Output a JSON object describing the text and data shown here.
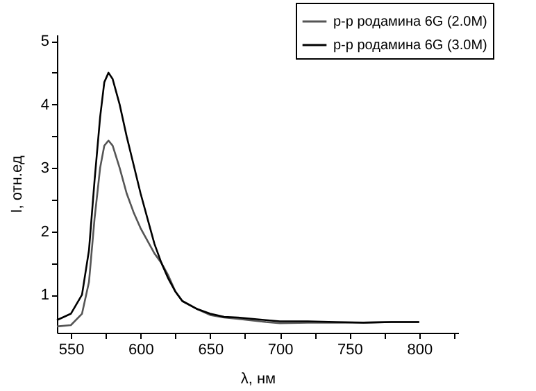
{
  "chart_data": {
    "type": "line",
    "xlabel": "λ, нм",
    "ylabel": "I, отн.ед",
    "xlim": [
      540,
      828
    ],
    "ylim": [
      0.4,
      5.1
    ],
    "xticks": [
      550,
      {
        "value": 575,
        "label": null
      },
      600,
      {
        "value": 625,
        "label": null
      },
      650,
      {
        "value": 675,
        "label": null
      },
      700,
      {
        "value": 725,
        "label": null
      },
      750,
      {
        "value": 775,
        "label": null
      },
      800,
      {
        "value": 825,
        "label": null
      }
    ],
    "yticks": [
      1,
      {
        "value": 1.5,
        "label": null
      },
      2,
      {
        "value": 2.5,
        "label": null
      },
      3,
      {
        "value": 3.5,
        "label": null
      },
      4,
      {
        "value": 4.5,
        "label": null
      },
      5
    ],
    "x": [
      540,
      550,
      558,
      563,
      567,
      571,
      574,
      577,
      580,
      585,
      590,
      595,
      600,
      605,
      610,
      615,
      620,
      625,
      630,
      640,
      650,
      660,
      670,
      690,
      700,
      720,
      740,
      760,
      780,
      800
    ],
    "series": [
      {
        "name": "р-р родамина 6G (2.0М)",
        "color": "#555555",
        "values": [
          0.5,
          0.52,
          0.7,
          1.2,
          2.2,
          3.0,
          3.35,
          3.43,
          3.35,
          3.0,
          2.6,
          2.3,
          2.05,
          1.85,
          1.65,
          1.5,
          1.3,
          1.05,
          0.9,
          0.78,
          0.68,
          0.64,
          0.62,
          0.57,
          0.55,
          0.56,
          0.56,
          0.56,
          0.57,
          0.57
        ]
      },
      {
        "name": "р-р родамина 6G (3.0М)",
        "color": "#000000",
        "values": [
          0.6,
          0.7,
          1.0,
          1.7,
          2.8,
          3.8,
          4.35,
          4.5,
          4.4,
          4.0,
          3.5,
          3.05,
          2.6,
          2.2,
          1.8,
          1.5,
          1.25,
          1.05,
          0.9,
          0.78,
          0.7,
          0.65,
          0.64,
          0.6,
          0.58,
          0.58,
          0.57,
          0.56,
          0.57,
          0.57
        ]
      }
    ],
    "legend": "top right",
    "grid": false,
    "line_style": "solid",
    "marker": "none"
  }
}
